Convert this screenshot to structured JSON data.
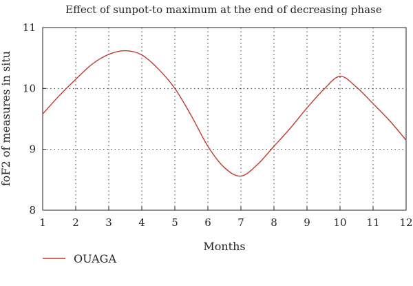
{
  "chart_data": {
    "type": "line",
    "title": "Effect of sunpot-to maximum at the end of decreasing phase",
    "xlabel": "Months",
    "ylabel": "foF2 of measures in situ",
    "xlim": [
      1,
      12
    ],
    "ylim": [
      8,
      11
    ],
    "xticks": [
      1,
      2,
      3,
      4,
      5,
      6,
      7,
      8,
      9,
      10,
      11,
      12
    ],
    "yticks": [
      8,
      9,
      10,
      11
    ],
    "grid": true,
    "legend_position": "bottom-left",
    "series": [
      {
        "name": "OUAGA",
        "color": "#c0392b",
        "x": [
          1,
          1.5,
          2,
          2.5,
          3,
          3.5,
          4,
          4.5,
          5,
          5.5,
          6,
          6.5,
          7,
          7.5,
          8,
          8.5,
          9,
          9.5,
          10,
          10.5,
          11,
          11.5,
          12
        ],
        "y": [
          9.58,
          9.88,
          10.15,
          10.4,
          10.56,
          10.62,
          10.55,
          10.32,
          10.0,
          9.55,
          9.05,
          8.7,
          8.56,
          8.75,
          9.05,
          9.35,
          9.68,
          9.98,
          10.2,
          10.02,
          9.75,
          9.47,
          9.15
        ]
      }
    ]
  }
}
